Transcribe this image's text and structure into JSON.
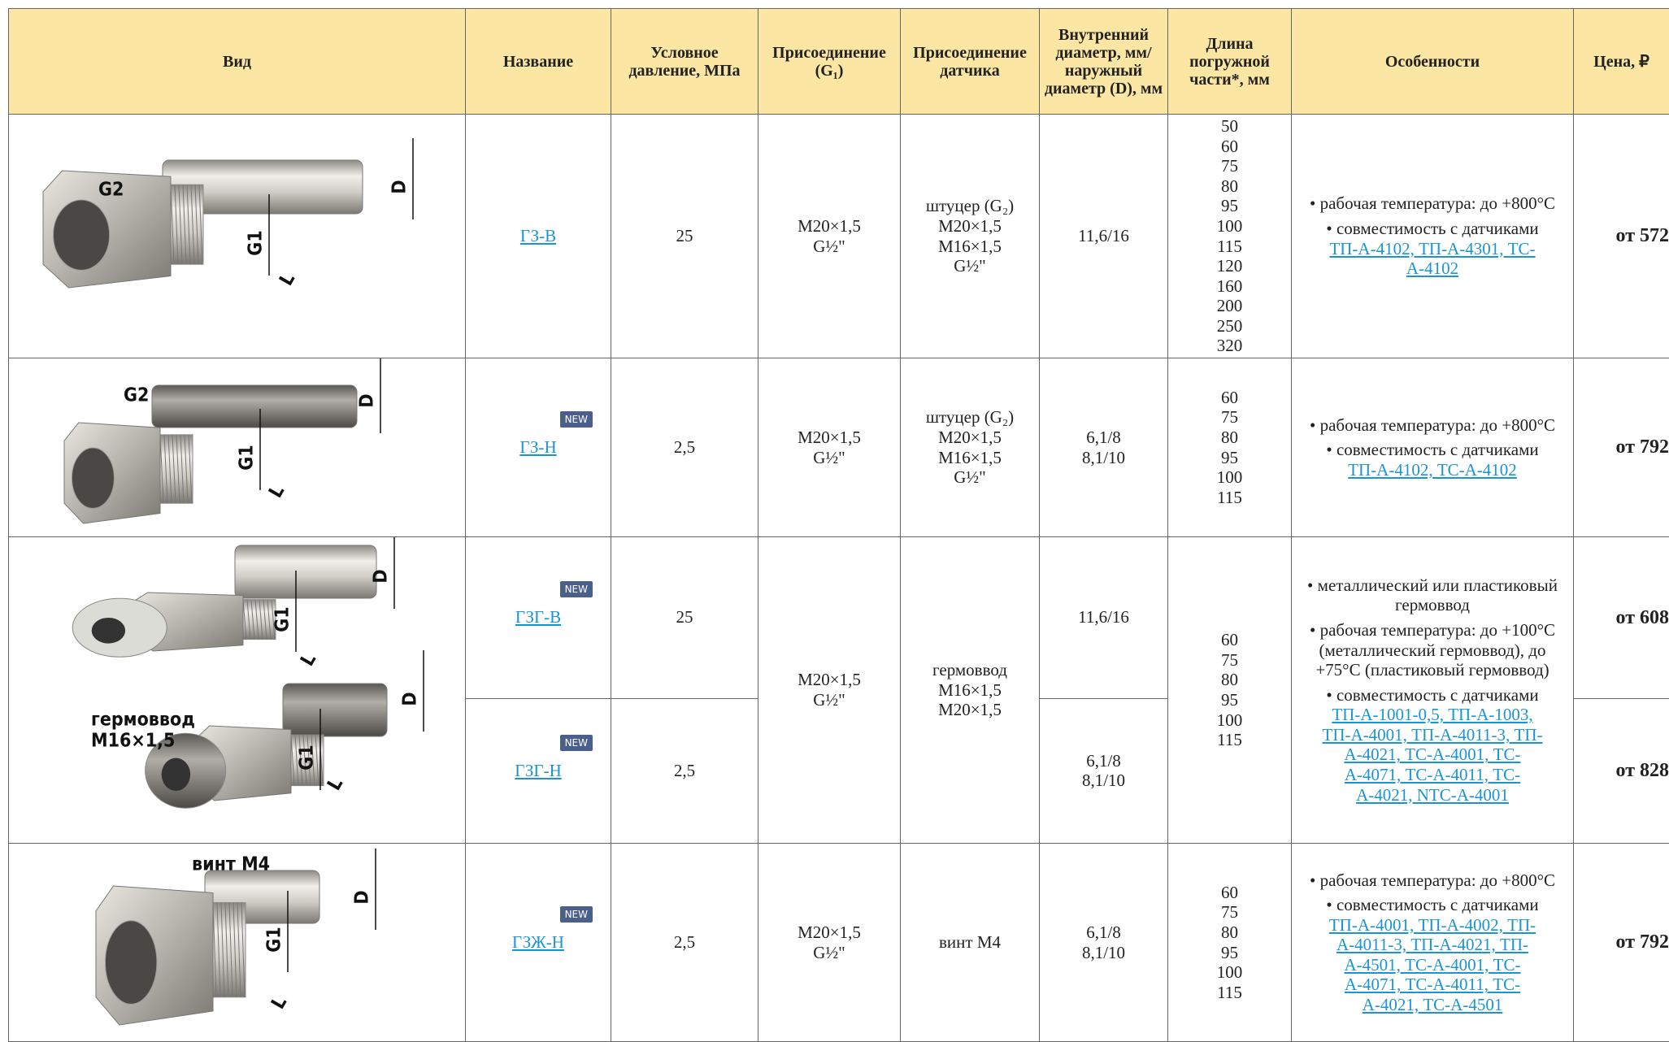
{
  "header": [
    "Вид",
    "Название",
    "Условное давление, МПа",
    "Присоединение (G₁)",
    "Присоединение датчика",
    "Внутренний диаметр, мм/ наружный диаметр (D), мм",
    "Длина погружной части*,  мм",
    "Особенности",
    "Цена, ₽"
  ],
  "table": {
    "rows": [
      {
        "image_labels": [
          "G2",
          "D",
          "G1",
          "L"
        ],
        "name": "ГЗ-В",
        "pressure": "25",
        "connection": [
          "M20×1,5",
          "G½\""
        ],
        "sensor": [
          "штуцер (G₂)",
          "M20×1,5",
          "M16×1,5",
          "G½\""
        ],
        "diameter": [
          "11,6/16"
        ],
        "length": [
          50,
          60,
          75,
          80,
          95,
          100,
          115,
          120,
          160,
          200,
          250,
          320
        ],
        "features": [
          {
            "text": "рабочая температура: до +800°C"
          },
          {
            "text": "совместимость с датчиками",
            "links": [
              "ТП-А-4102, ТП-А-4301, ТС-А-4102"
            ]
          }
        ],
        "price": "от 572"
      },
      {
        "image_labels": [
          "G2",
          "D",
          "G1",
          "L"
        ],
        "name": "ГЗ-Н",
        "badge": "NEW",
        "pressure": "2,5",
        "connection": [
          "M20×1,5",
          "G½\""
        ],
        "sensor": [
          "штуцер (G₂)",
          "M20×1,5",
          "M16×1,5",
          "G½\""
        ],
        "diameter": [
          "6,1/8",
          "8,1/10"
        ],
        "length": [
          60,
          75,
          80,
          95,
          100,
          115
        ],
        "features": [
          {
            "text": "рабочая температура: до +800°C"
          },
          {
            "text": "совместимость с датчиками",
            "links": [
              "ТП-А-4102, ТС-А-4102"
            ]
          }
        ],
        "price": "от 792"
      },
      {
        "image_labels": [
          "D",
          "G1",
          "L",
          "D",
          "G1",
          "L",
          "гермоввод",
          "M16×1,5"
        ],
        "name": "ГЗГ-В",
        "badge": "NEW",
        "pressure": "25",
        "connection": [
          "M20×1,5",
          "G½\""
        ],
        "sensor": [
          "гермоввод",
          "M16×1,5",
          "M20×1,5"
        ],
        "diameter": [
          "11,6/16"
        ],
        "length": [
          60,
          75,
          80,
          95,
          100,
          115
        ],
        "features": [
          {
            "text": "металлический или пластиковый гермоввод"
          },
          {
            "text": "рабочая температура: до +100°C (металлический гермоввод), до +75°C (пластиковый гермоввод)"
          },
          {
            "text": "совместимость с датчиками",
            "links": [
              "ТП-А-1001-0,5, ТП-А-1003, ТП-А-4001, ТП-А-4011-3, ТП-А-4021, ТС-А-4001, ТС-А-4071, ТС-А-4011, ТС-А-4021, NTC-A-4001"
            ]
          }
        ],
        "price": "от 608"
      },
      {
        "name": "ГЗГ-Н",
        "badge": "NEW",
        "pressure": "2,5",
        "diameter": [
          "6,1/8",
          "8,1/10"
        ],
        "price": "от 828"
      },
      {
        "image_labels": [
          "винт M4",
          "D",
          "G1",
          "L"
        ],
        "name": "ГЗЖ-Н",
        "badge": "NEW",
        "pressure": "2,5",
        "connection": [
          "M20×1,5",
          "G½\""
        ],
        "sensor": [
          "винт M4"
        ],
        "diameter": [
          "6,1/8",
          "8,1/10"
        ],
        "length": [
          60,
          75,
          80,
          95,
          100,
          115
        ],
        "features": [
          {
            "text": "рабочая температура: до +800°C"
          },
          {
            "text": "совместимость с датчиками",
            "links": [
              "ТП-А-4001, ТП-А-4002, ТП-А-4011-3, ТП-А-4021, ТП-А-4501, ТС-А-4001, ТС-А-4071, ТС-А-4011, ТС-А-4021, ТС-А-4501"
            ]
          }
        ],
        "price": "от 792"
      }
    ]
  }
}
